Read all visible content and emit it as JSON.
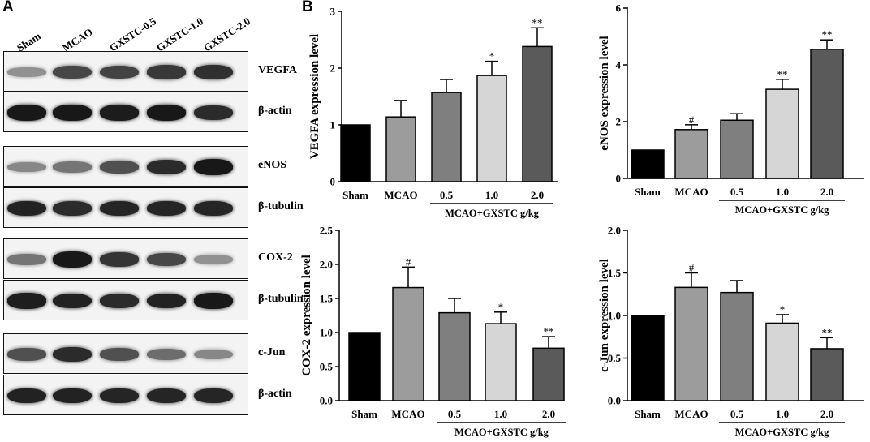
{
  "panels": {
    "a": "A",
    "b": "B"
  },
  "blot": {
    "lanes": [
      "Sham",
      "MCAO",
      "GXSTC-0.5",
      "GXSTC-1.0",
      "GXSTC-2.0"
    ],
    "rows": [
      {
        "label": "VEGFA",
        "intensity": [
          0.3,
          0.7,
          0.72,
          0.78,
          0.82
        ]
      },
      {
        "label": "β-actin",
        "intensity": [
          0.95,
          0.95,
          0.93,
          0.95,
          0.85
        ]
      },
      {
        "label": "eNOS",
        "intensity": [
          0.35,
          0.45,
          0.65,
          0.85,
          0.95
        ]
      },
      {
        "label": "β-tubulin",
        "intensity": [
          0.9,
          0.85,
          0.88,
          0.88,
          0.88
        ]
      },
      {
        "label": "COX-2",
        "intensity": [
          0.45,
          0.95,
          0.8,
          0.7,
          0.3
        ]
      },
      {
        "label": "β-tubulin",
        "intensity": [
          0.92,
          0.9,
          0.85,
          0.9,
          0.95
        ]
      },
      {
        "label": "c-Jun",
        "intensity": [
          0.65,
          0.85,
          0.65,
          0.5,
          0.35
        ]
      },
      {
        "label": "β-actin",
        "intensity": [
          0.9,
          0.9,
          0.88,
          0.88,
          0.88
        ]
      }
    ]
  },
  "chart_data": [
    {
      "type": "bar",
      "title": "",
      "xlabel": "",
      "ylabel": "VEGFA expression level",
      "categories": [
        "Sham",
        "MCAO",
        "0.5",
        "1.0",
        "2.0"
      ],
      "group_label": "MCAO+GXSTC g/kg",
      "values": [
        1.0,
        1.14,
        1.57,
        1.87,
        2.38
      ],
      "errors": [
        0,
        0.29,
        0.23,
        0.25,
        0.33
      ],
      "annotations": [
        "",
        "",
        "",
        "*",
        "**"
      ],
      "bar_colors": [
        "#000000",
        "#9c9c9c",
        "#7f7f7f",
        "#d6d6d6",
        "#5a5a5a"
      ],
      "ylim": [
        0,
        3
      ],
      "yticks": [
        "0",
        "1",
        "2",
        "3"
      ]
    },
    {
      "type": "bar",
      "title": "",
      "xlabel": "",
      "ylabel": "eNOS expression level",
      "categories": [
        "Sham",
        "MCAO",
        "0.5",
        "1.0",
        "2.0"
      ],
      "group_label": "MCAO+GXSTC g/kg",
      "values": [
        1.0,
        1.72,
        2.05,
        3.14,
        4.55
      ],
      "errors": [
        0,
        0.17,
        0.23,
        0.35,
        0.33
      ],
      "annotations": [
        "",
        "#",
        "",
        "**",
        "**"
      ],
      "bar_colors": [
        "#000000",
        "#9c9c9c",
        "#7f7f7f",
        "#d6d6d6",
        "#5a5a5a"
      ],
      "ylim": [
        0,
        6
      ],
      "yticks": [
        "0",
        "2",
        "4",
        "6"
      ]
    },
    {
      "type": "bar",
      "title": "",
      "xlabel": "",
      "ylabel": "COX-2 expression level",
      "categories": [
        "Sham",
        "MCAO",
        "0.5",
        "1.0",
        "2.0"
      ],
      "group_label": "MCAO+GXSTC g/kg",
      "values": [
        1.0,
        1.66,
        1.29,
        1.13,
        0.77
      ],
      "errors": [
        0,
        0.3,
        0.21,
        0.17,
        0.17
      ],
      "annotations": [
        "",
        "#",
        "",
        "*",
        "**"
      ],
      "bar_colors": [
        "#000000",
        "#9c9c9c",
        "#7f7f7f",
        "#d6d6d6",
        "#5a5a5a"
      ],
      "ylim": [
        0,
        2.5
      ],
      "yticks": [
        "0.0",
        "0.5",
        "1.0",
        "1.5",
        "2.0",
        "2.5"
      ]
    },
    {
      "type": "bar",
      "title": "",
      "xlabel": "",
      "ylabel": "c-Jun expression level",
      "categories": [
        "Sham",
        "MCAO",
        "0.5",
        "1.0",
        "2.0"
      ],
      "group_label": "MCAO+GXSTC g/kg",
      "values": [
        1.0,
        1.33,
        1.27,
        0.91,
        0.61
      ],
      "errors": [
        0,
        0.17,
        0.14,
        0.1,
        0.13
      ],
      "annotations": [
        "",
        "#",
        "",
        "*",
        "**"
      ],
      "bar_colors": [
        "#000000",
        "#9c9c9c",
        "#7f7f7f",
        "#d6d6d6",
        "#5a5a5a"
      ],
      "ylim": [
        0,
        2.0
      ],
      "yticks": [
        "0.0",
        "0.5",
        "1.0",
        "1.5",
        "2.0"
      ]
    }
  ]
}
